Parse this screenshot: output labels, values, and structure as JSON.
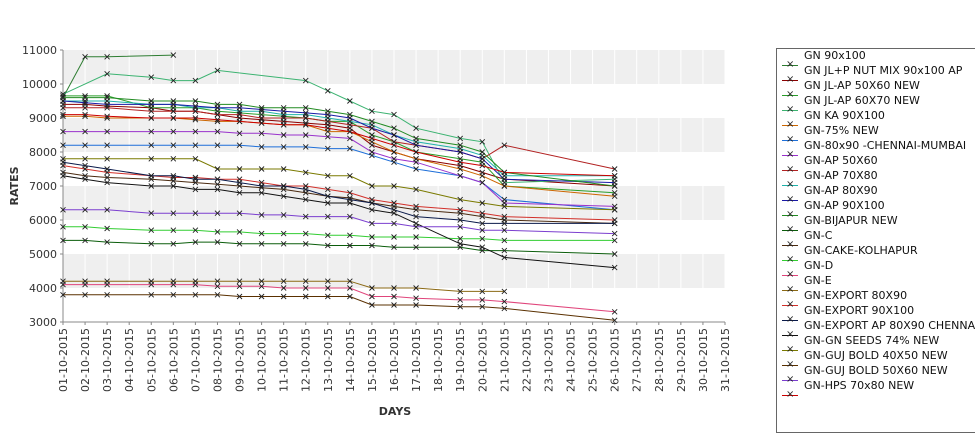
{
  "chart_data": {
    "type": "line",
    "xlabel": "DAYS",
    "ylabel": "RATES",
    "ylim": [
      3000,
      11000
    ],
    "yticks": [
      3000,
      4000,
      5000,
      6000,
      7000,
      8000,
      9000,
      10000,
      11000
    ],
    "grid": "alternating horizontal bands",
    "legend_position": "right",
    "x": [
      "01-10-2015",
      "02-10-2015",
      "03-10-2015",
      "04-10-2015",
      "05-10-2015",
      "06-10-2015",
      "07-10-2015",
      "08-10-2015",
      "09-10-2015",
      "10-10-2015",
      "11-10-2015",
      "12-10-2015",
      "13-10-2015",
      "14-10-2015",
      "15-10-2015",
      "16-10-2015",
      "17-10-2015",
      "18-10-2015",
      "19-10-2015",
      "20-10-2015",
      "21-10-2015",
      "22-10-2015",
      "23-10-2015",
      "24-10-2015",
      "25-10-2015",
      "26-10-2015",
      "27-10-2015",
      "28-10-2015",
      "29-10-2015",
      "30-10-2015",
      "31-10-2015"
    ],
    "series": [
      {
        "name": "GN 90x100",
        "color": "#2e7d32",
        "values": [
          9600,
          10800,
          10800,
          null,
          null,
          10850,
          null,
          null,
          null,
          null,
          null,
          null,
          null,
          null,
          null,
          null,
          null,
          null,
          null,
          null,
          null,
          null,
          null,
          null,
          null,
          null,
          null,
          null,
          null,
          null,
          null
        ]
      },
      {
        "name": "GN JL+P NUT MIX 90x100 AP",
        "color": "#8b0000",
        "values": [
          9400,
          9400,
          9350,
          null,
          9300,
          9200,
          9200,
          9100,
          9000,
          8950,
          8900,
          8850,
          8800,
          8700,
          8200,
          8000,
          7800,
          null,
          7600,
          7400,
          7200,
          null,
          null,
          null,
          null,
          7000,
          null,
          null,
          null,
          null,
          null
        ]
      },
      {
        "name": "GN JL-AP 50X60 NEW",
        "color": "#2a9d2a",
        "values": [
          9650,
          9650,
          9650,
          null,
          9300,
          9300,
          9300,
          9200,
          9150,
          9100,
          9050,
          9000,
          8900,
          8900,
          8500,
          8300,
          8000,
          null,
          7800,
          7700,
          7000,
          null,
          null,
          null,
          null,
          6800,
          null,
          null,
          null,
          null,
          null
        ]
      },
      {
        "name": "GN JL-AP 60X70 NEW",
        "color": "#3cb371",
        "values": [
          9700,
          null,
          10300,
          null,
          10200,
          10100,
          10100,
          10400,
          null,
          null,
          null,
          10100,
          9800,
          9500,
          9200,
          9100,
          8700,
          null,
          8400,
          8300,
          7100,
          null,
          null,
          null,
          null,
          7200,
          null,
          null,
          null,
          null,
          null
        ]
      },
      {
        "name": "GN KA 90X100",
        "color": "#cc6600",
        "values": [
          9050,
          9050,
          9000,
          null,
          9000,
          9000,
          8950,
          8900,
          8900,
          8850,
          8800,
          8800,
          8600,
          8600,
          8300,
          8000,
          7800,
          null,
          7500,
          7300,
          7000,
          null,
          null,
          null,
          null,
          6700,
          null,
          null,
          null,
          null,
          null
        ]
      },
      {
        "name": "GN-75% NEW",
        "color": "#1e6fd9",
        "values": [
          8200,
          8200,
          8200,
          null,
          8200,
          8200,
          8200,
          8200,
          8200,
          8150,
          8150,
          8150,
          8100,
          8100,
          7900,
          7700,
          7500,
          null,
          7300,
          7100,
          6600,
          null,
          null,
          null,
          null,
          6300,
          null,
          null,
          null,
          null,
          null
        ]
      },
      {
        "name": "GN-80x90 -CHENNAI-MUMBAI",
        "color": "#9932cc",
        "values": [
          8600,
          8600,
          8600,
          null,
          8600,
          8600,
          8600,
          8600,
          8550,
          8550,
          8500,
          8500,
          8450,
          8400,
          8000,
          7800,
          7700,
          null,
          7300,
          7100,
          6500,
          null,
          null,
          null,
          null,
          6400,
          null,
          null,
          null,
          null,
          null
        ]
      },
      {
        "name": "GN-AP 50X60",
        "color": "#b22222",
        "values": [
          9300,
          9300,
          9300,
          null,
          9200,
          9200,
          9200,
          9100,
          9100,
          9000,
          9000,
          9000,
          8900,
          8800,
          8700,
          8300,
          8200,
          null,
          8000,
          7800,
          8200,
          null,
          null,
          null,
          null,
          7500,
          null,
          null,
          null,
          null,
          null
        ]
      },
      {
        "name": "GN-AP 70X80",
        "color": "#20b2aa",
        "values": [
          9500,
          9500,
          9500,
          null,
          9400,
          9400,
          9300,
          9300,
          9200,
          9200,
          9100,
          9100,
          9000,
          8900,
          8800,
          8500,
          8300,
          null,
          8100,
          7900,
          7300,
          null,
          null,
          null,
          null,
          7300,
          null,
          null,
          null,
          null,
          null
        ]
      },
      {
        "name": "GN-AP 80X90",
        "color": "#1a1aa6",
        "values": [
          9500,
          9450,
          9400,
          null,
          9400,
          9400,
          9350,
          9300,
          9300,
          9250,
          9200,
          9150,
          9100,
          9000,
          8700,
          8500,
          8200,
          null,
          8000,
          7800,
          7200,
          null,
          null,
          null,
          null,
          7100,
          null,
          null,
          null,
          null,
          null
        ]
      },
      {
        "name": "GN-AP 90X100",
        "color": "#228b22",
        "values": [
          9600,
          9600,
          9600,
          null,
          9500,
          9500,
          9500,
          9400,
          9400,
          9300,
          9300,
          9300,
          9200,
          9100,
          8900,
          8700,
          8400,
          null,
          8200,
          8000,
          7400,
          null,
          null,
          null,
          null,
          7000,
          null,
          null,
          null,
          null,
          null
        ]
      },
      {
        "name": "GN-BIJAPUR NEW",
        "color": "#0b5d0b",
        "values": [
          5400,
          5400,
          5350,
          null,
          5300,
          5300,
          5350,
          5350,
          5300,
          5300,
          5300,
          5300,
          5250,
          5250,
          5250,
          5200,
          5200,
          null,
          5200,
          5100,
          5100,
          null,
          null,
          null,
          null,
          5000,
          null,
          null,
          null,
          null,
          null
        ]
      },
      {
        "name": "GN-C",
        "color": "#4a2a10",
        "values": [
          7400,
          7300,
          7250,
          null,
          7200,
          7150,
          7100,
          7050,
          7000,
          6950,
          6900,
          6800,
          6700,
          6650,
          6500,
          6400,
          6300,
          null,
          6200,
          6100,
          6000,
          null,
          null,
          null,
          null,
          5900,
          null,
          null,
          null,
          null,
          null
        ]
      },
      {
        "name": "GN-CAKE-KOLHAPUR",
        "color": "#32cd32",
        "values": [
          5800,
          5800,
          5750,
          null,
          5700,
          5700,
          5700,
          5650,
          5650,
          5600,
          5600,
          5600,
          5550,
          5550,
          5500,
          5500,
          5500,
          null,
          5450,
          5450,
          5400,
          null,
          null,
          null,
          null,
          5400,
          null,
          null,
          null,
          null,
          null
        ]
      },
      {
        "name": "GN-D",
        "color": "#e0457b",
        "values": [
          4100,
          4100,
          4100,
          null,
          4100,
          4100,
          4100,
          4050,
          4050,
          4050,
          4000,
          4000,
          4000,
          4000,
          3750,
          3750,
          3700,
          null,
          3650,
          3650,
          3600,
          null,
          null,
          null,
          null,
          3300,
          null,
          null,
          null,
          null,
          null
        ]
      },
      {
        "name": "GN-E",
        "color": "#8b6914",
        "values": [
          4200,
          4200,
          4200,
          null,
          4200,
          4200,
          4200,
          4200,
          4200,
          4200,
          4200,
          4200,
          4200,
          4200,
          4000,
          4000,
          4000,
          null,
          3900,
          3900,
          3900,
          null,
          null,
          null,
          null,
          null,
          null,
          null,
          null,
          null,
          null
        ]
      },
      {
        "name": "GN-EXPORT 80X90",
        "color": "#d2302a",
        "values": [
          7600,
          7500,
          7400,
          null,
          7300,
          7250,
          7250,
          7200,
          7200,
          7100,
          7000,
          7000,
          6900,
          6800,
          6600,
          6500,
          6400,
          null,
          6300,
          6200,
          6100,
          null,
          null,
          null,
          null,
          6000,
          null,
          null,
          null,
          null,
          null
        ]
      },
      {
        "name": "GN-EXPORT 90X100",
        "color": "#0a1a4a",
        "values": [
          7700,
          7600,
          7500,
          null,
          7300,
          7300,
          7200,
          7200,
          7100,
          7000,
          7000,
          6900,
          6700,
          6600,
          6500,
          6300,
          6100,
          null,
          6000,
          5900,
          5900,
          null,
          null,
          null,
          null,
          5900,
          null,
          null,
          null,
          null,
          null
        ]
      },
      {
        "name": "GN-EXPORT AP 80X90 CHENNAI",
        "color": "#111111",
        "values": [
          7300,
          7200,
          7100,
          null,
          7000,
          7000,
          6900,
          6900,
          6800,
          6800,
          6700,
          6600,
          6500,
          6500,
          6300,
          6200,
          5900,
          null,
          5300,
          5200,
          4900,
          null,
          null,
          null,
          null,
          4600,
          null,
          null,
          null,
          null,
          null
        ]
      },
      {
        "name": "GN-GN SEEDS 74% NEW",
        "color": "#7a7a00",
        "values": [
          7800,
          7800,
          7800,
          null,
          7800,
          7800,
          7800,
          7500,
          7500,
          7500,
          7500,
          7400,
          7300,
          7300,
          7000,
          7000,
          6900,
          null,
          6600,
          6500,
          6400,
          null,
          null,
          null,
          null,
          6300,
          null,
          null,
          null,
          null,
          null
        ]
      },
      {
        "name": "GN-GUJ BOLD 40X50 NEW",
        "color": "#5a3000",
        "values": [
          3800,
          3800,
          3800,
          null,
          3800,
          3800,
          3800,
          3800,
          3750,
          3750,
          3750,
          3750,
          3750,
          3750,
          3500,
          3500,
          3500,
          null,
          3450,
          3450,
          3400,
          null,
          null,
          null,
          null,
          3050,
          null,
          null,
          null,
          null,
          null
        ]
      },
      {
        "name": "GN-GUJ BOLD 50X60 NEW",
        "color": "#7b3fcf",
        "values": [
          6300,
          6300,
          6300,
          null,
          6200,
          6200,
          6200,
          6200,
          6200,
          6150,
          6150,
          6100,
          6100,
          6100,
          5900,
          5900,
          5800,
          null,
          5800,
          5700,
          5700,
          null,
          null,
          null,
          null,
          5600,
          null,
          null,
          null,
          null,
          null
        ]
      },
      {
        "name": "GN-HPS  70x80 NEW",
        "color": "#cc0000",
        "values": [
          9100,
          9100,
          9050,
          null,
          9000,
          9000,
          9000,
          8950,
          8900,
          8850,
          8800,
          8800,
          8700,
          8600,
          8400,
          8200,
          8000,
          null,
          7700,
          7600,
          7400,
          null,
          null,
          null,
          null,
          7300,
          null,
          null,
          null,
          null,
          null
        ]
      }
    ]
  }
}
